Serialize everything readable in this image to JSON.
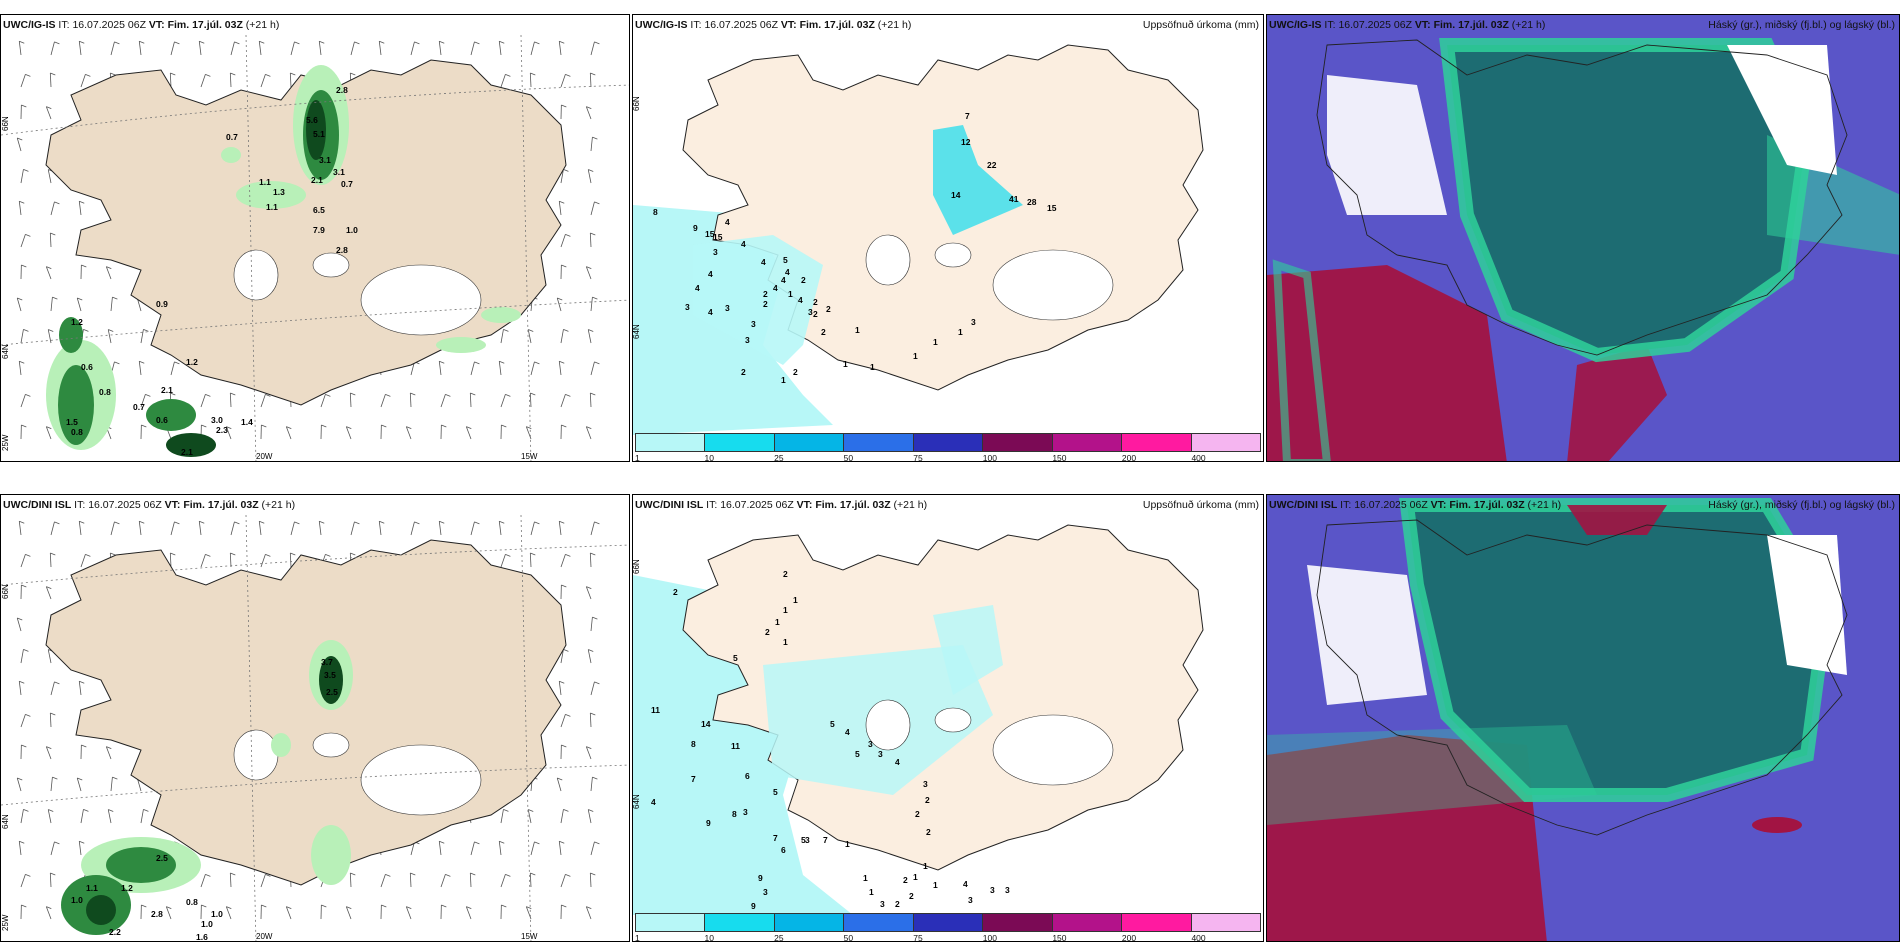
{
  "rows": [
    {
      "model": "UWC/IG-IS",
      "run_label": "IT:",
      "run_time": "16.07.2025 06Z",
      "vt_label": "VT:",
      "valid_time": "Fim. 17.júl. 03Z",
      "lead": "(+21 h)",
      "precip_values": [
        "7",
        "12",
        "22",
        "14",
        "41",
        "28",
        "15",
        "8",
        "9",
        "15",
        "15",
        "4",
        "4",
        "3",
        "4",
        "4",
        "5",
        "4",
        "4",
        "4",
        "4",
        "3",
        "4",
        "3",
        "2",
        "3",
        "2",
        "2",
        "2",
        "2",
        "4",
        "3",
        "2",
        "3",
        "2",
        "1",
        "1",
        "1",
        "1",
        "1",
        "1",
        "3",
        "2",
        "1",
        "1",
        "2"
      ],
      "snow_values": [
        "2.8",
        "0.7",
        "5.6",
        "5.1",
        "3.1",
        "3.1",
        "2.1",
        "0.7",
        "1.1",
        "1.3",
        "1.1",
        "6.5",
        "7.9",
        "1.0",
        "2.8",
        "0.9",
        "1.2",
        "0.6",
        "1.2",
        "0.8",
        "2.1",
        "0.7",
        "0.6",
        "0.8",
        "1.5",
        "3.0",
        "2.3",
        "1.4",
        "2.1"
      ]
    },
    {
      "model": "UWC/DINI ISL",
      "run_label": "IT:",
      "run_time": "16.07.2025 06Z",
      "vt_label": "VT:",
      "valid_time": "Fim. 17.júl. 03Z",
      "lead": "(+21 h)",
      "precip_values": [
        "2",
        "2",
        "1",
        "1",
        "1",
        "2",
        "1",
        "5",
        "11",
        "14",
        "8",
        "11",
        "7",
        "4",
        "6",
        "9",
        "8",
        "5",
        "3",
        "5",
        "4",
        "5",
        "3",
        "3",
        "4",
        "3",
        "2",
        "2",
        "2",
        "7",
        "6",
        "5",
        "9",
        "9",
        "3",
        "2",
        "3",
        "7",
        "1",
        "1",
        "1",
        "2",
        "1",
        "4",
        "3",
        "3",
        "3",
        "3",
        "2",
        "2",
        "1",
        "1"
      ],
      "snow_values": [
        "3.7",
        "3.5",
        "2.5",
        "2.5",
        "1.1",
        "1.0",
        "1.2",
        "2.2",
        "0.8",
        "2.8",
        "0.8",
        "1.0",
        "1.0",
        "1.6"
      ]
    }
  ],
  "precip_title": "Uppsöfnuð úrkoma (mm)",
  "cloud_title": "Háský (gr.), miðský (fj.bl.) og lágský (bl.)",
  "axis_labels": {
    "lat_66": "66N",
    "lat_64": "64N",
    "lon_25": "25W",
    "lon_20": "20W",
    "lon_15": "15W",
    "lat_66_c": "66N",
    "lat_64_c": "64N"
  },
  "colorbar": {
    "colors": [
      "#b7f7f7",
      "#17dcee",
      "#05b5e6",
      "#2b6fe8",
      "#2a2fb8",
      "#7b0a55",
      "#b3128a",
      "#ff1aa0",
      "#f5b5f0"
    ],
    "labels": [
      "1",
      "10",
      "25",
      "50",
      "75",
      "100",
      "150",
      "200",
      "400"
    ]
  },
  "colors": {
    "land": "#ecdcc7",
    "land_precip": "#fbeee0",
    "snow_dark": "#0f4a1e",
    "snow_mid": "#2e8a40",
    "snow_light": "#b8f0b8",
    "cloud_blue": "#5a55c8",
    "cloud_teal": "#1a6e6e",
    "cloud_green": "#2fd19a",
    "cloud_red": "#a21443"
  }
}
